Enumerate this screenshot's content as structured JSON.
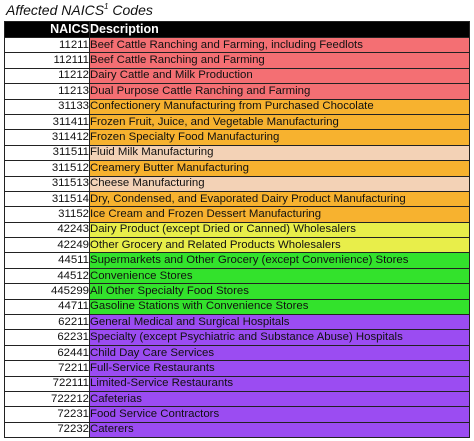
{
  "caption": {
    "text": "Affected NAICS",
    "superscript": "1",
    "suffix": " Codes"
  },
  "table": {
    "headers": {
      "code": "NAICS",
      "description": "Description"
    },
    "rows": [
      {
        "code": "11211",
        "description": "Beef Cattle Ranching and Farming, including Feedlots",
        "color": "#f46f73"
      },
      {
        "code": "112111",
        "description": "Beef Cattle Ranching and Farming",
        "color": "#f46f73"
      },
      {
        "code": "11212",
        "description": "Dairy Cattle and Milk Production",
        "color": "#f46f73"
      },
      {
        "code": "11213",
        "description": "Dual Purpose Cattle Ranching and Farming",
        "color": "#f46f73"
      },
      {
        "code": "31133",
        "description": "Confectionery Manufacturing from Purchased Chocolate",
        "color": "#f7b22f"
      },
      {
        "code": "311411",
        "description": "Frozen Fruit, Juice, and Vegetable Manufacturing",
        "color": "#f7b22f"
      },
      {
        "code": "311412",
        "description": "Frozen Specialty Food Manufacturing",
        "color": "#f7b22f"
      },
      {
        "code": "311511",
        "description": "Fluid Milk Manufacturing",
        "color": "#f3d2b6"
      },
      {
        "code": "311512",
        "description": "Creamery Butter Manufacturing",
        "color": "#f7b22f"
      },
      {
        "code": "311513",
        "description": "Cheese Manufacturing",
        "color": "#f3d2b6"
      },
      {
        "code": "311514",
        "description": "Dry, Condensed, and Evaporated Dairy Product Manufacturing",
        "color": "#f7b22f"
      },
      {
        "code": "31152",
        "description": "Ice Cream and Frozen Dessert Manufacturing",
        "color": "#f7b22f"
      },
      {
        "code": "42243",
        "description": "Dairy Product (except Dried or Canned) Wholesalers",
        "color": "#e8ee4a"
      },
      {
        "code": "42249",
        "description": "Other Grocery and Related Products Wholesalers",
        "color": "#e8ee4a"
      },
      {
        "code": "44511",
        "description": "Supermarkets and Other Grocery (except Convenience) Stores",
        "color": "#33e22c"
      },
      {
        "code": "44512",
        "description": "Convenience Stores",
        "color": "#33e22c"
      },
      {
        "code": "445299",
        "description": "All Other Specialty Food Stores",
        "color": "#33e22c"
      },
      {
        "code": "44711",
        "description": "Gasoline Stations with Convenience Stores",
        "color": "#33e22c"
      },
      {
        "code": "62211",
        "description": "General Medical and Surgical Hospitals",
        "color": "#9b4cf2"
      },
      {
        "code": "62231",
        "description": "Specialty (except Psychiatric and Substance Abuse) Hospitals",
        "color": "#9b4cf2"
      },
      {
        "code": "62441",
        "description": "Child Day Care Services",
        "color": "#9b4cf2"
      },
      {
        "code": "72211",
        "description": "Full-Service Restaurants",
        "color": "#9b4cf2"
      },
      {
        "code": "722111",
        "description": "Limited-Service Restaurants",
        "color": "#9b4cf2"
      },
      {
        "code": "722212",
        "description": "Cafeterias",
        "color": "#9b4cf2"
      },
      {
        "code": "72231",
        "description": "Food Service Contractors",
        "color": "#9b4cf2"
      },
      {
        "code": "72232",
        "description": "Caterers",
        "color": "#9b4cf2"
      }
    ]
  }
}
